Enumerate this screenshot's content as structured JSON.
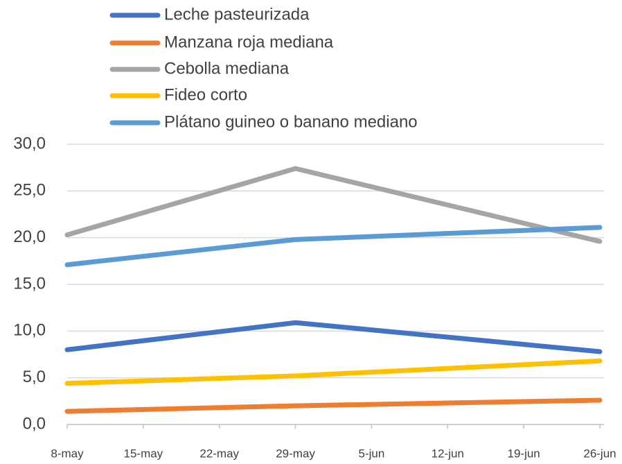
{
  "chart_data": {
    "type": "line",
    "categories": [
      "8-may",
      "15-may",
      "22-may",
      "29-may",
      "5-jun",
      "12-jun",
      "19-jun",
      "26-jun"
    ],
    "series": [
      {
        "name": "Leche pasteurizada",
        "color": "#4472c4",
        "x": [
          "8-may",
          "29-may",
          "26-jun"
        ],
        "values": [
          8.0,
          10.9,
          7.8
        ]
      },
      {
        "name": "Manzana roja mediana",
        "color": "#ed7d31",
        "x": [
          "8-may",
          "29-may",
          "26-jun"
        ],
        "values": [
          1.4,
          2.0,
          2.6
        ]
      },
      {
        "name": "Cebolla mediana",
        "color": "#a5a5a5",
        "x": [
          "8-may",
          "29-may",
          "26-jun"
        ],
        "values": [
          20.3,
          27.4,
          19.6
        ]
      },
      {
        "name": "Fideo corto",
        "color": "#ffc000",
        "x": [
          "8-may",
          "29-may",
          "26-jun"
        ],
        "values": [
          4.4,
          5.2,
          6.8
        ]
      },
      {
        "name": "Plátano guineo o banano mediano",
        "color": "#5b9bd5",
        "x": [
          "8-may",
          "29-may",
          "26-jun"
        ],
        "values": [
          17.1,
          19.8,
          21.1
        ]
      }
    ],
    "ylim": [
      0,
      30
    ],
    "yticks": [
      {
        "value": 0,
        "label": "0,0"
      },
      {
        "value": 5,
        "label": "5,0"
      },
      {
        "value": 10,
        "label": "10,0"
      },
      {
        "value": 15,
        "label": "15,0"
      },
      {
        "value": 20,
        "label": "20,0"
      },
      {
        "value": 25,
        "label": "25,0"
      },
      {
        "value": 30,
        "label": "30,0"
      }
    ],
    "grid": true,
    "legend": "top"
  }
}
